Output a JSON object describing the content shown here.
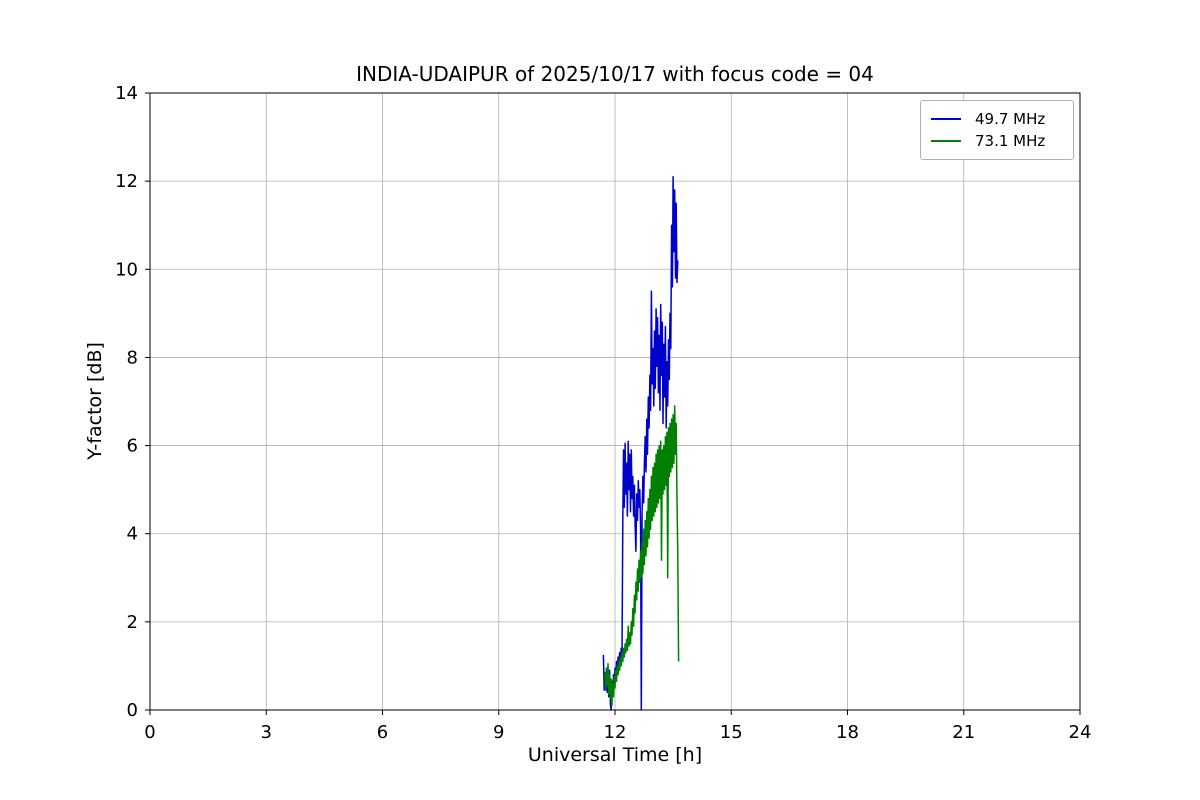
{
  "chart_data": {
    "type": "line",
    "title": "INDIA-UDAIPUR of 2025/10/17 with focus code = 04",
    "xlabel": "Universal Time [h]",
    "ylabel": "Y-factor [dB]",
    "xlim": [
      0,
      24
    ],
    "ylim": [
      0,
      14
    ],
    "xticks": [
      0,
      3,
      6,
      9,
      12,
      15,
      18,
      21,
      24
    ],
    "yticks": [
      0,
      2,
      4,
      6,
      8,
      10,
      12,
      14
    ],
    "grid": true,
    "grid_color": "#b0b0b0",
    "legend_position": "upper right",
    "series": [
      {
        "name": "49.7 MHz",
        "color": "#0000cd",
        "points": [
          [
            11.7,
            1.25
          ],
          [
            11.72,
            0.45
          ],
          [
            11.74,
            0.85
          ],
          [
            11.76,
            0.55
          ],
          [
            11.78,
            0.95
          ],
          [
            11.8,
            0.4
          ],
          [
            11.82,
            0.75
          ],
          [
            11.84,
            0.3
          ],
          [
            11.86,
            0.9
          ],
          [
            11.88,
            0.15
          ],
          [
            11.9,
            0.0
          ],
          [
            11.92,
            0.65
          ],
          [
            11.94,
            0.35
          ],
          [
            11.96,
            0.8
          ],
          [
            11.98,
            0.5
          ],
          [
            12.0,
            0.95
          ],
          [
            12.02,
            0.7
          ],
          [
            12.04,
            1.1
          ],
          [
            12.06,
            0.85
          ],
          [
            12.08,
            1.2
          ],
          [
            12.1,
            0.95
          ],
          [
            12.12,
            1.3
          ],
          [
            12.14,
            1.1
          ],
          [
            12.16,
            1.4
          ],
          [
            12.18,
            1.2
          ],
          [
            12.2,
            4.3
          ],
          [
            12.22,
            5.9
          ],
          [
            12.24,
            4.6
          ],
          [
            12.26,
            6.05
          ],
          [
            12.28,
            4.9
          ],
          [
            12.3,
            5.6
          ],
          [
            12.32,
            4.4
          ],
          [
            12.34,
            6.1
          ],
          [
            12.36,
            5.0
          ],
          [
            12.38,
            5.8
          ],
          [
            12.4,
            4.5
          ],
          [
            12.42,
            5.9
          ],
          [
            12.44,
            4.8
          ],
          [
            12.46,
            5.3
          ],
          [
            12.48,
            4.4
          ],
          [
            12.5,
            5.1
          ],
          [
            12.52,
            4.2
          ],
          [
            12.54,
            3.6
          ],
          [
            12.56,
            4.9
          ],
          [
            12.58,
            4.3
          ],
          [
            12.6,
            5.2
          ],
          [
            12.62,
            4.6
          ],
          [
            12.64,
            5.0
          ],
          [
            12.66,
            4.1
          ],
          [
            12.68,
            0.0
          ],
          [
            12.7,
            4.5
          ],
          [
            12.72,
            5.3
          ],
          [
            12.74,
            4.7
          ],
          [
            12.76,
            5.6
          ],
          [
            12.78,
            6.2
          ],
          [
            12.8,
            5.4
          ],
          [
            12.82,
            6.6
          ],
          [
            12.84,
            5.8
          ],
          [
            12.86,
            7.1
          ],
          [
            12.88,
            6.4
          ],
          [
            12.9,
            7.6
          ],
          [
            12.92,
            6.8
          ],
          [
            12.94,
            9.5
          ],
          [
            12.96,
            7.4
          ],
          [
            12.98,
            8.2
          ],
          [
            13.0,
            6.9
          ],
          [
            13.02,
            8.6
          ],
          [
            13.04,
            7.3
          ],
          [
            13.06,
            9.1
          ],
          [
            13.08,
            7.8
          ],
          [
            13.1,
            8.9
          ],
          [
            13.12,
            7.2
          ],
          [
            13.14,
            8.5
          ],
          [
            13.16,
            6.8
          ],
          [
            13.18,
            9.2
          ],
          [
            13.2,
            7.6
          ],
          [
            13.22,
            8.8
          ],
          [
            13.24,
            6.5
          ],
          [
            13.26,
            8.3
          ],
          [
            13.28,
            7.1
          ],
          [
            13.3,
            8.7
          ],
          [
            13.32,
            6.4
          ],
          [
            13.34,
            7.9
          ],
          [
            13.36,
            6.9
          ],
          [
            13.38,
            8.4
          ],
          [
            13.4,
            7.5
          ],
          [
            13.42,
            9.0
          ],
          [
            13.44,
            8.2
          ],
          [
            13.46,
            11.0
          ],
          [
            13.48,
            9.6
          ],
          [
            13.5,
            12.1
          ],
          [
            13.52,
            10.4
          ],
          [
            13.54,
            11.8
          ],
          [
            13.56,
            9.8
          ],
          [
            13.58,
            11.5
          ],
          [
            13.6,
            9.7
          ],
          [
            13.62,
            10.2
          ]
        ]
      },
      {
        "name": "73.1 MHz",
        "color": "#008000",
        "points": [
          [
            11.74,
            0.85
          ],
          [
            11.76,
            0.45
          ],
          [
            11.78,
            0.95
          ],
          [
            11.8,
            0.55
          ],
          [
            11.82,
            1.05
          ],
          [
            11.84,
            0.35
          ],
          [
            11.86,
            0.8
          ],
          [
            11.88,
            0.25
          ],
          [
            11.9,
            0.7
          ],
          [
            11.92,
            0.1
          ],
          [
            11.94,
            0.6
          ],
          [
            11.96,
            0.3
          ],
          [
            11.98,
            0.75
          ],
          [
            12.0,
            0.5
          ],
          [
            12.02,
            0.9
          ],
          [
            12.04,
            0.65
          ],
          [
            12.06,
            1.0
          ],
          [
            12.08,
            0.8
          ],
          [
            12.1,
            1.1
          ],
          [
            12.12,
            0.9
          ],
          [
            12.14,
            1.2
          ],
          [
            12.16,
            1.0
          ],
          [
            12.18,
            1.3
          ],
          [
            12.2,
            1.1
          ],
          [
            12.22,
            1.4
          ],
          [
            12.24,
            1.2
          ],
          [
            12.26,
            1.5
          ],
          [
            12.28,
            1.3
          ],
          [
            12.3,
            1.6
          ],
          [
            12.32,
            1.35
          ],
          [
            12.34,
            1.9
          ],
          [
            12.36,
            1.45
          ],
          [
            12.38,
            1.75
          ],
          [
            12.4,
            1.5
          ],
          [
            12.42,
            2.0
          ],
          [
            12.44,
            1.7
          ],
          [
            12.46,
            2.3
          ],
          [
            12.48,
            1.9
          ],
          [
            12.5,
            2.6
          ],
          [
            12.52,
            2.2
          ],
          [
            12.54,
            2.9
          ],
          [
            12.56,
            2.5
          ],
          [
            12.58,
            3.2
          ],
          [
            12.6,
            2.7
          ],
          [
            12.62,
            3.4
          ],
          [
            12.64,
            2.9
          ],
          [
            12.66,
            3.6
          ],
          [
            12.68,
            3.0
          ],
          [
            12.7,
            3.8
          ],
          [
            12.72,
            3.1
          ],
          [
            12.74,
            4.1
          ],
          [
            12.76,
            3.3
          ],
          [
            12.78,
            4.3
          ],
          [
            12.8,
            3.5
          ],
          [
            12.82,
            4.5
          ],
          [
            12.84,
            3.7
          ],
          [
            12.86,
            4.8
          ],
          [
            12.88,
            3.9
          ],
          [
            12.9,
            5.0
          ],
          [
            12.92,
            4.1
          ],
          [
            12.94,
            5.3
          ],
          [
            12.96,
            4.3
          ],
          [
            12.98,
            5.5
          ],
          [
            13.0,
            4.4
          ],
          [
            13.02,
            5.6
          ],
          [
            13.04,
            4.5
          ],
          [
            13.06,
            5.8
          ],
          [
            13.08,
            4.6
          ],
          [
            13.1,
            5.9
          ],
          [
            13.12,
            4.7
          ],
          [
            13.14,
            6.0
          ],
          [
            13.16,
            4.8
          ],
          [
            13.18,
            6.1
          ],
          [
            13.2,
            3.4
          ],
          [
            13.22,
            5.9
          ],
          [
            13.24,
            4.9
          ],
          [
            13.26,
            6.0
          ],
          [
            13.28,
            5.0
          ],
          [
            13.3,
            6.2
          ],
          [
            13.32,
            5.1
          ],
          [
            13.34,
            6.3
          ],
          [
            13.36,
            3.0
          ],
          [
            13.38,
            6.4
          ],
          [
            13.4,
            5.3
          ],
          [
            13.42,
            6.5
          ],
          [
            13.44,
            5.4
          ],
          [
            13.46,
            6.6
          ],
          [
            13.48,
            5.5
          ],
          [
            13.5,
            6.7
          ],
          [
            13.52,
            5.6
          ],
          [
            13.54,
            6.9
          ],
          [
            13.56,
            5.8
          ],
          [
            13.58,
            6.5
          ],
          [
            13.6,
            4.8
          ],
          [
            13.62,
            3.5
          ],
          [
            13.64,
            1.1
          ]
        ]
      }
    ]
  }
}
